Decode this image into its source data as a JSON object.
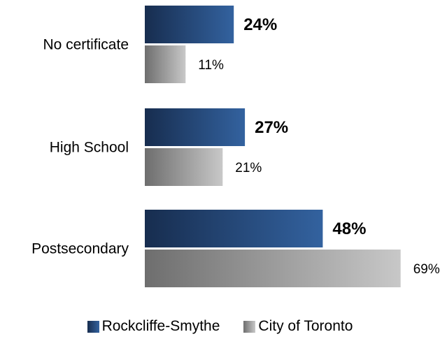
{
  "chart_data": {
    "type": "bar",
    "orientation": "horizontal",
    "categories": [
      "No certificate",
      "High School",
      "Postsecondary"
    ],
    "series": [
      {
        "name": "Rockcliffe-Smythe",
        "values": [
          24,
          27,
          48
        ],
        "value_labels": [
          "24%",
          "27%",
          "48%"
        ],
        "color": "#2e5a94"
      },
      {
        "name": "City of Toronto",
        "values": [
          11,
          21,
          69
        ],
        "value_labels": [
          "11%",
          "21%",
          "69%"
        ],
        "color": "#a6a6a6"
      }
    ],
    "unit": "%",
    "grid": false,
    "legend_position": "bottom",
    "xlim": [
      0,
      69
    ]
  }
}
